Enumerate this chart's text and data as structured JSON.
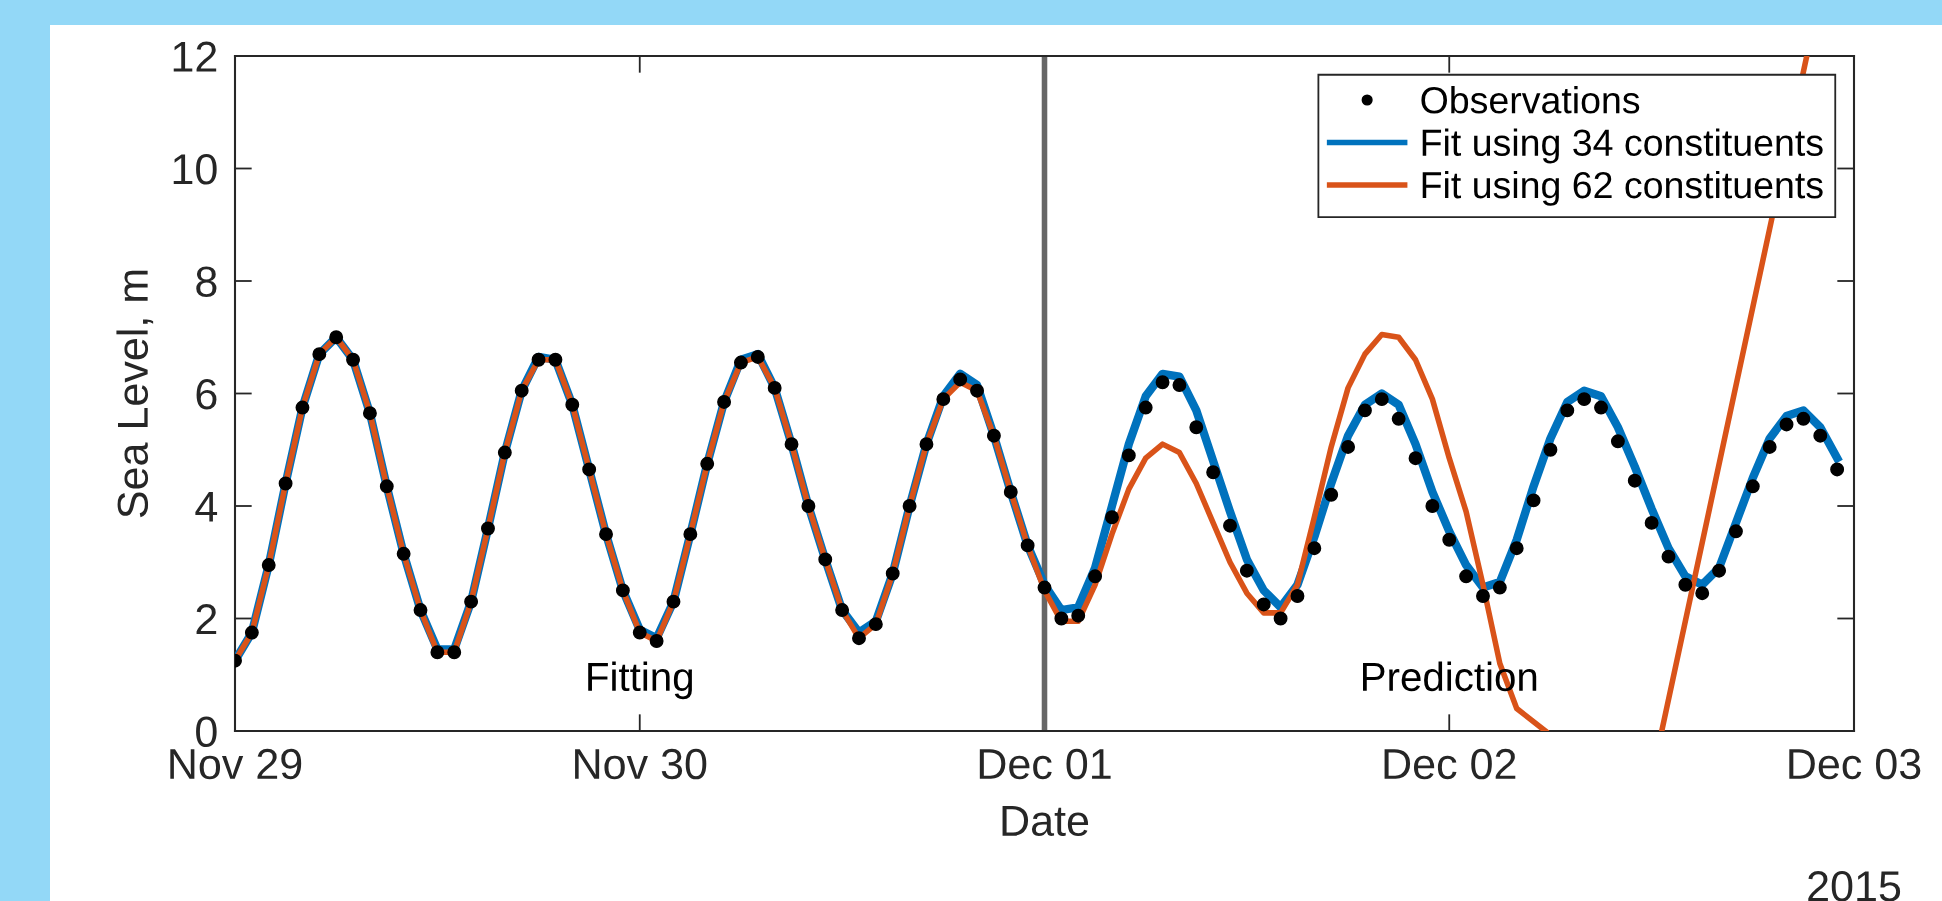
{
  "chart_data": {
    "type": "line",
    "xlabel": "Date",
    "ylabel": "Sea Level, m",
    "x": [
      "2015-11-29T00:00",
      "2015-11-29T01:00",
      "2015-11-29T02:00",
      "2015-11-29T03:00",
      "2015-11-29T04:00",
      "2015-11-29T05:00",
      "2015-11-29T06:00",
      "2015-11-29T07:00",
      "2015-11-29T08:00",
      "2015-11-29T09:00",
      "2015-11-29T10:00",
      "2015-11-29T11:00",
      "2015-11-29T12:00",
      "2015-11-29T13:00",
      "2015-11-29T14:00",
      "2015-11-29T15:00",
      "2015-11-29T16:00",
      "2015-11-29T17:00",
      "2015-11-29T18:00",
      "2015-11-29T19:00",
      "2015-11-29T20:00",
      "2015-11-29T21:00",
      "2015-11-29T22:00",
      "2015-11-29T23:00",
      "2015-11-30T00:00",
      "2015-11-30T01:00",
      "2015-11-30T02:00",
      "2015-11-30T03:00",
      "2015-11-30T04:00",
      "2015-11-30T05:00",
      "2015-11-30T06:00",
      "2015-11-30T07:00",
      "2015-11-30T08:00",
      "2015-11-30T09:00",
      "2015-11-30T10:00",
      "2015-11-30T11:00",
      "2015-11-30T12:00",
      "2015-11-30T13:00",
      "2015-11-30T14:00",
      "2015-11-30T15:00",
      "2015-11-30T16:00",
      "2015-11-30T17:00",
      "2015-11-30T18:00",
      "2015-11-30T19:00",
      "2015-11-30T20:00",
      "2015-11-30T21:00",
      "2015-11-30T22:00",
      "2015-11-30T23:00",
      "2015-12-01T00:00",
      "2015-12-01T01:00",
      "2015-12-01T02:00",
      "2015-12-01T03:00",
      "2015-12-01T04:00",
      "2015-12-01T05:00",
      "2015-12-01T06:00",
      "2015-12-01T07:00",
      "2015-12-01T08:00",
      "2015-12-01T09:00",
      "2015-12-01T10:00",
      "2015-12-01T11:00",
      "2015-12-01T12:00",
      "2015-12-01T13:00",
      "2015-12-01T14:00",
      "2015-12-01T15:00",
      "2015-12-01T16:00",
      "2015-12-01T17:00",
      "2015-12-01T18:00",
      "2015-12-01T19:00",
      "2015-12-01T20:00",
      "2015-12-01T21:00",
      "2015-12-01T22:00",
      "2015-12-01T23:00",
      "2015-12-02T00:00",
      "2015-12-02T01:00",
      "2015-12-02T02:00",
      "2015-12-02T03:00",
      "2015-12-02T04:00",
      "2015-12-02T05:00",
      "2015-12-02T06:00",
      "2015-12-02T07:00",
      "2015-12-02T08:00",
      "2015-12-02T09:00",
      "2015-12-02T10:00",
      "2015-12-02T11:00",
      "2015-12-02T12:00",
      "2015-12-02T13:00",
      "2015-12-02T14:00",
      "2015-12-02T15:00",
      "2015-12-02T16:00",
      "2015-12-02T17:00",
      "2015-12-02T18:00",
      "2015-12-02T19:00",
      "2015-12-02T20:00",
      "2015-12-02T21:00",
      "2015-12-02T22:00",
      "2015-12-02T23:00"
    ],
    "series": [
      {
        "name": "Observations",
        "type": "scatter",
        "marker": "circle",
        "color": "#000000",
        "values": [
          1.25,
          1.75,
          2.95,
          4.4,
          5.75,
          6.7,
          7.0,
          6.6,
          5.65,
          4.35,
          3.15,
          2.15,
          1.4,
          1.4,
          2.3,
          3.6,
          4.95,
          6.05,
          6.6,
          6.6,
          5.8,
          4.65,
          3.5,
          2.5,
          1.75,
          1.6,
          2.3,
          3.5,
          4.75,
          5.85,
          6.55,
          6.65,
          6.1,
          5.1,
          4.0,
          3.05,
          2.15,
          1.65,
          1.9,
          2.8,
          4.0,
          5.1,
          5.9,
          6.25,
          6.05,
          5.25,
          4.25,
          3.3,
          2.55,
          2.0,
          2.05,
          2.75,
          3.8,
          4.9,
          5.75,
          6.2,
          6.15,
          5.4,
          4.6,
          3.65,
          2.85,
          2.25,
          2.0,
          2.4,
          3.25,
          4.2,
          5.05,
          5.7,
          5.9,
          5.55,
          4.85,
          4.0,
          3.4,
          2.75,
          2.4,
          2.55,
          3.25,
          4.1,
          5.0,
          5.7,
          5.9,
          5.75,
          5.15,
          4.45,
          3.7,
          3.1,
          2.6,
          2.45,
          2.85,
          3.55,
          4.35,
          5.05,
          5.45,
          5.55,
          5.25,
          4.65
        ]
      },
      {
        "name": "Fit using 34 constituents",
        "color": "#0072bd",
        "values": [
          1.25,
          1.75,
          2.95,
          4.4,
          5.75,
          6.7,
          7.0,
          6.6,
          5.65,
          4.35,
          3.15,
          2.15,
          1.45,
          1.45,
          2.3,
          3.6,
          4.95,
          6.05,
          6.65,
          6.6,
          5.8,
          4.65,
          3.5,
          2.5,
          1.8,
          1.65,
          2.3,
          3.5,
          4.75,
          5.85,
          6.6,
          6.7,
          6.1,
          5.1,
          4.0,
          3.05,
          2.15,
          1.75,
          1.95,
          2.8,
          4.0,
          5.1,
          5.95,
          6.35,
          6.15,
          5.25,
          4.25,
          3.3,
          2.6,
          2.15,
          2.2,
          2.9,
          4.0,
          5.1,
          5.95,
          6.35,
          6.3,
          5.7,
          4.8,
          3.9,
          3.05,
          2.5,
          2.2,
          2.6,
          3.45,
          4.4,
          5.25,
          5.8,
          6.0,
          5.8,
          5.1,
          4.25,
          3.55,
          2.95,
          2.55,
          2.65,
          3.4,
          4.35,
          5.2,
          5.85,
          6.05,
          5.95,
          5.4,
          4.7,
          3.95,
          3.25,
          2.75,
          2.6,
          2.9,
          3.7,
          4.5,
          5.2,
          5.6,
          5.7,
          5.4,
          4.85
        ]
      },
      {
        "name": "Fit using 62 constituents",
        "color": "#d95319",
        "x": [
          "2015-11-29T00:00",
          "2015-11-29T01:00",
          "2015-11-29T02:00",
          "2015-11-29T03:00",
          "2015-11-29T04:00",
          "2015-11-29T05:00",
          "2015-11-29T06:00",
          "2015-11-29T07:00",
          "2015-11-29T08:00",
          "2015-11-29T09:00",
          "2015-11-29T10:00",
          "2015-11-29T11:00",
          "2015-11-29T12:00",
          "2015-11-29T13:00",
          "2015-11-29T14:00",
          "2015-11-29T15:00",
          "2015-11-29T16:00",
          "2015-11-29T17:00",
          "2015-11-29T18:00",
          "2015-11-29T19:00",
          "2015-11-29T20:00",
          "2015-11-29T21:00",
          "2015-11-29T22:00",
          "2015-11-29T23:00",
          "2015-11-30T00:00",
          "2015-11-30T01:00",
          "2015-11-30T02:00",
          "2015-11-30T03:00",
          "2015-11-30T04:00",
          "2015-11-30T05:00",
          "2015-11-30T06:00",
          "2015-11-30T07:00",
          "2015-11-30T08:00",
          "2015-11-30T09:00",
          "2015-11-30T10:00",
          "2015-11-30T11:00",
          "2015-11-30T12:00",
          "2015-11-30T13:00",
          "2015-11-30T14:00",
          "2015-11-30T15:00",
          "2015-11-30T16:00",
          "2015-11-30T17:00",
          "2015-11-30T18:00",
          "2015-11-30T19:00",
          "2015-11-30T20:00",
          "2015-11-30T21:00",
          "2015-11-30T22:00",
          "2015-11-30T23:00",
          "2015-12-01T00:00",
          "2015-12-01T01:00",
          "2015-12-01T02:00",
          "2015-12-01T03:00",
          "2015-12-01T04:00",
          "2015-12-01T05:00",
          "2015-12-01T06:00",
          "2015-12-01T07:00",
          "2015-12-01T08:00",
          "2015-12-01T09:00",
          "2015-12-01T10:00",
          "2015-12-01T11:00",
          "2015-12-01T12:00",
          "2015-12-01T13:00",
          "2015-12-01T14:00",
          "2015-12-01T15:00",
          "2015-12-01T16:00",
          "2015-12-01T17:00",
          "2015-12-01T18:00",
          "2015-12-01T19:00",
          "2015-12-01T20:00",
          "2015-12-01T21:00",
          "2015-12-01T22:00",
          "2015-12-01T23:00",
          "2015-12-02T00:00",
          "2015-12-02T01:00",
          "2015-12-02T02:00",
          "2015-12-02T03:00",
          "2015-12-02T04:00",
          "2015-12-02T05:42",
          "2015-12-02T09:00",
          "2015-12-02T12:36",
          "2015-12-02T21:12"
        ],
        "values": [
          1.25,
          1.75,
          2.95,
          4.4,
          5.75,
          6.7,
          7.0,
          6.6,
          5.65,
          4.35,
          3.15,
          2.15,
          1.4,
          1.4,
          2.3,
          3.6,
          4.95,
          6.05,
          6.6,
          6.6,
          5.8,
          4.65,
          3.5,
          2.5,
          1.75,
          1.6,
          2.3,
          3.5,
          4.75,
          5.85,
          6.55,
          6.65,
          6.1,
          5.1,
          4.0,
          3.05,
          2.15,
          1.65,
          1.9,
          2.8,
          4.0,
          5.1,
          5.9,
          6.2,
          6.05,
          5.25,
          4.25,
          3.3,
          2.5,
          1.95,
          1.95,
          2.6,
          3.5,
          4.3,
          4.85,
          5.1,
          4.95,
          4.4,
          3.7,
          3.0,
          2.45,
          2.1,
          2.1,
          2.6,
          3.8,
          5.05,
          6.1,
          6.7,
          7.05,
          7.0,
          6.6,
          5.9,
          4.85,
          3.9,
          2.6,
          1.2,
          0.4,
          0,
          null,
          0,
          12
        ]
      }
    ],
    "xlim": [
      "2015-11-29T00:00",
      "2015-12-03T00:00"
    ],
    "xticks": [
      {
        "value": "2015-11-29",
        "label": "Nov 29"
      },
      {
        "value": "2015-11-30",
        "label": "Nov 30"
      },
      {
        "value": "2015-12-01",
        "label": "Dec 01"
      },
      {
        "value": "2015-12-02",
        "label": "Dec 02"
      },
      {
        "value": "2015-12-03",
        "label": "Dec 03"
      }
    ],
    "ylim": [
      0,
      12
    ],
    "yticks": [
      0,
      2,
      4,
      6,
      8,
      10,
      12
    ],
    "ref_lines": [
      {
        "axis": "x",
        "value": "2015-12-01T00:00",
        "color": "#666666"
      }
    ],
    "annotations": [
      "Fitting",
      "Prediction",
      "2015"
    ],
    "grid": false,
    "legend": "top right",
    "line_style": "solid"
  }
}
